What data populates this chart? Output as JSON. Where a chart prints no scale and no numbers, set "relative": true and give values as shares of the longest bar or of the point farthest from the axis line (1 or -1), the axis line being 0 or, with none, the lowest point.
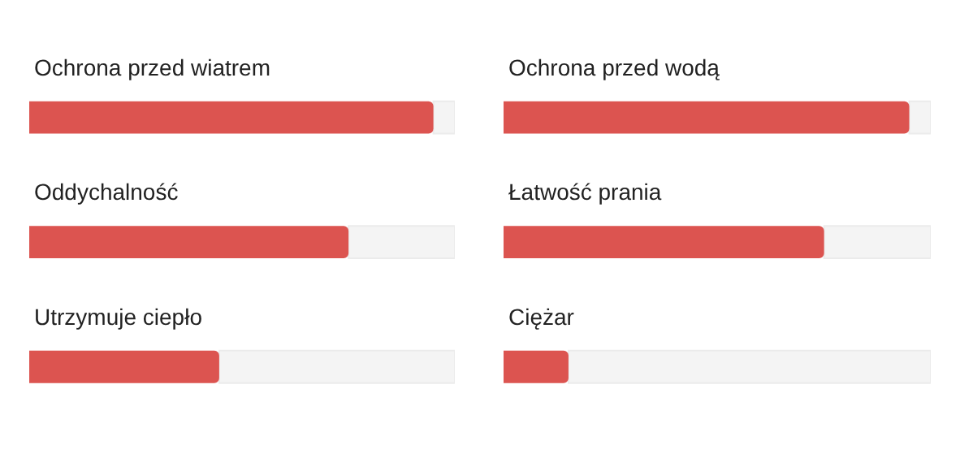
{
  "chart_data": [
    {
      "type": "bar",
      "orientation": "horizontal",
      "relative": true,
      "categories": [
        "Ochrona przed wiatrem",
        "Oddychalność",
        "Utrzymuje ciepło"
      ],
      "values": [
        1,
        0.79,
        0.47
      ],
      "color": "#dc5450"
    },
    {
      "type": "bar",
      "orientation": "horizontal",
      "relative": true,
      "categories": [
        "Ochrona przed wodą",
        "Łatwość prania",
        "Ciężar"
      ],
      "values": [
        1,
        0.79,
        0.16
      ],
      "color": "#dc5450"
    }
  ]
}
